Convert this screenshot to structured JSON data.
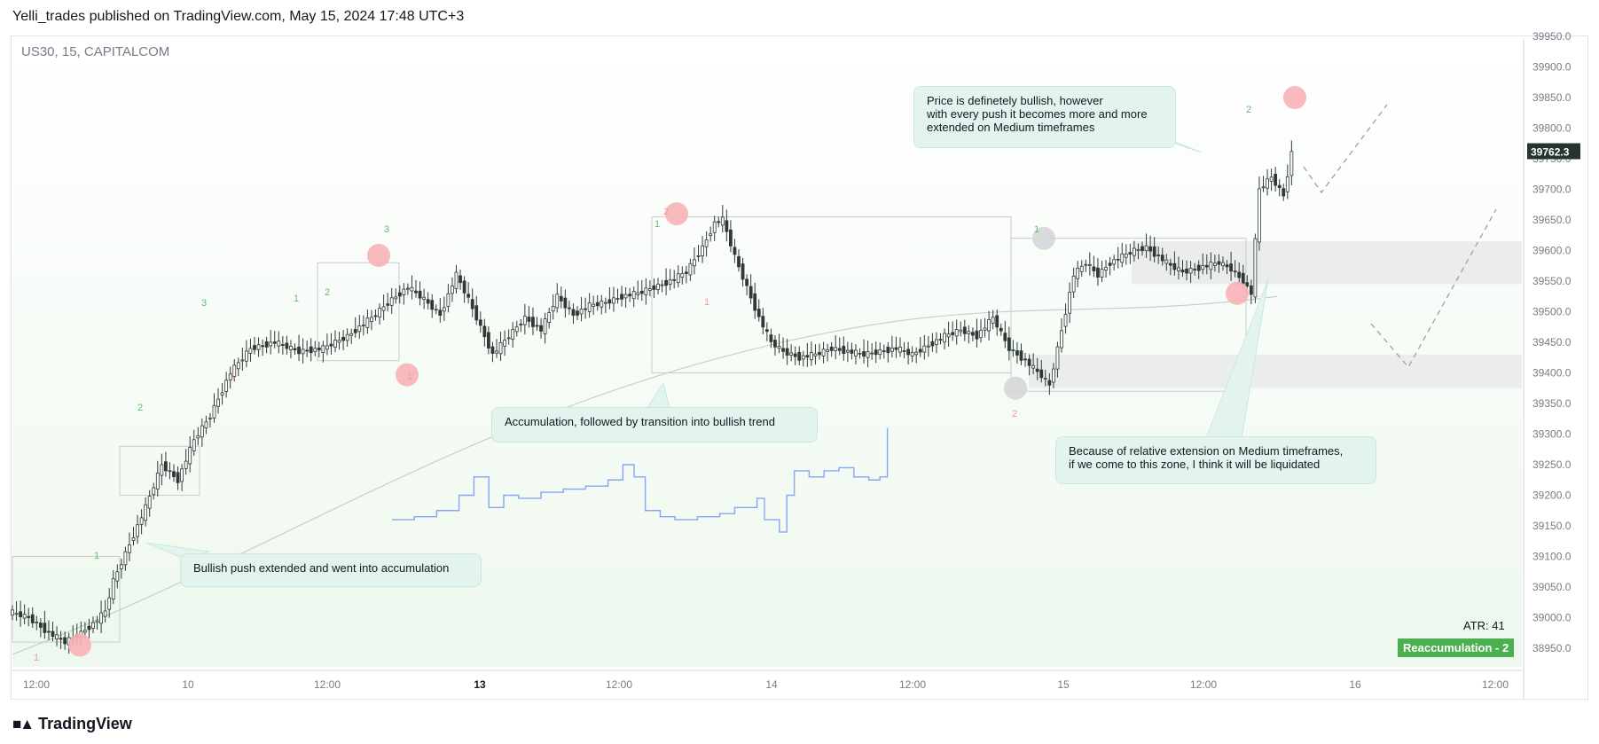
{
  "header": {
    "publisher_text": "Yelli_trades published on TradingView.com, May 15, 2024 17:48 UTC+3"
  },
  "symbol": {
    "label": "US30, 15, CAPITALCOM"
  },
  "footer": {
    "brand": "TradingView"
  },
  "indicators": {
    "atr_label": "ATR: 41",
    "regime_badge": "Reaccumulation - 2"
  },
  "notes": [
    {
      "text": "Bullish push extended and went into accumulation"
    },
    {
      "text": "Accumulation, followed by transition into bullish trend"
    },
    {
      "text": "Price is definetely bullish, however\nwith every push it becomes more and more\nextended on Medium timeframes"
    },
    {
      "text": "Because of relative extension on Medium timeframes,\nif we come to this zone, I think it will be liquidated"
    }
  ],
  "colors": {
    "candle_up": "#26a69a",
    "candle_body": "#2f3a36",
    "bg_gradient_bottom": "#eef8ee",
    "circle_red": "#f7b2b6",
    "circle_grey": "#d5d6d9",
    "zone_grey": "#e9e9eb",
    "blue_line": "#86a6f5",
    "ma_line": "#c8cfc9",
    "price_badge": "#26342d",
    "wave_green": "#66bb6a",
    "wave_red": "#ef9a9a"
  },
  "chart_data": {
    "type": "candlestick",
    "title": "US30, 15, CAPITALCOM",
    "x_tick_labels": [
      "12:00",
      "10",
      "12:00",
      "13",
      "12:00",
      "14",
      "12:00",
      "15",
      "12:00",
      "16",
      "12:00"
    ],
    "y_tick_labels": [
      "39950.0",
      "39900.0",
      "39850.0",
      "39800.0",
      "39750.0",
      "39700.0",
      "39650.0",
      "39600.0",
      "39550.0",
      "39500.0",
      "39450.0",
      "39400.0",
      "39350.0",
      "39300.0",
      "39250.0",
      "39200.0",
      "39150.0",
      "39100.0",
      "39050.0",
      "39000.0",
      "38950.0"
    ],
    "ylim": [
      38925,
      39960
    ],
    "last_price": "39762.3",
    "price_path": [
      [
        0,
        39010
      ],
      [
        5,
        39000
      ],
      [
        10,
        38975
      ],
      [
        14,
        38960
      ],
      [
        18,
        38975
      ],
      [
        21,
        38990
      ],
      [
        24,
        39010
      ],
      [
        26,
        39060
      ],
      [
        30,
        39120
      ],
      [
        34,
        39180
      ],
      [
        38,
        39250
      ],
      [
        42,
        39225
      ],
      [
        46,
        39290
      ],
      [
        50,
        39330
      ],
      [
        55,
        39400
      ],
      [
        60,
        39440
      ],
      [
        66,
        39450
      ],
      [
        72,
        39435
      ],
      [
        78,
        39440
      ],
      [
        84,
        39460
      ],
      [
        90,
        39490
      ],
      [
        95,
        39520
      ],
      [
        99,
        39540
      ],
      [
        103,
        39520
      ],
      [
        107,
        39495
      ],
      [
        111,
        39560
      ],
      [
        114,
        39520
      ],
      [
        117,
        39475
      ],
      [
        120,
        39430
      ],
      [
        124,
        39460
      ],
      [
        128,
        39490
      ],
      [
        132,
        39470
      ],
      [
        136,
        39525
      ],
      [
        140,
        39495
      ],
      [
        144,
        39510
      ],
      [
        148,
        39515
      ],
      [
        152,
        39525
      ],
      [
        156,
        39530
      ],
      [
        160,
        39540
      ],
      [
        164,
        39550
      ],
      [
        168,
        39565
      ],
      [
        172,
        39605
      ],
      [
        175,
        39645
      ],
      [
        177,
        39650
      ],
      [
        180,
        39590
      ],
      [
        183,
        39540
      ],
      [
        186,
        39490
      ],
      [
        189,
        39450
      ],
      [
        192,
        39435
      ],
      [
        196,
        39425
      ],
      [
        200,
        39430
      ],
      [
        204,
        39440
      ],
      [
        208,
        39435
      ],
      [
        212,
        39430
      ],
      [
        216,
        39435
      ],
      [
        220,
        39440
      ],
      [
        224,
        39430
      ],
      [
        228,
        39445
      ],
      [
        232,
        39460
      ],
      [
        236,
        39470
      ],
      [
        240,
        39460
      ],
      [
        244,
        39490
      ],
      [
        248,
        39440
      ],
      [
        252,
        39420
      ],
      [
        256,
        39395
      ],
      [
        258,
        39380
      ],
      [
        261,
        39470
      ],
      [
        264,
        39560
      ],
      [
        267,
        39580
      ],
      [
        270,
        39560
      ],
      [
        273,
        39580
      ],
      [
        276,
        39590
      ],
      [
        279,
        39600
      ],
      [
        282,
        39605
      ],
      [
        285,
        39590
      ],
      [
        288,
        39575
      ],
      [
        291,
        39565
      ],
      [
        294,
        39570
      ],
      [
        297,
        39575
      ],
      [
        300,
        39580
      ],
      [
        303,
        39570
      ],
      [
        306,
        39550
      ],
      [
        308,
        39530
      ],
      [
        310,
        39700
      ],
      [
        313,
        39720
      ],
      [
        316,
        39690
      ],
      [
        318,
        39760
      ]
    ],
    "blue_series_path": [
      [
        0,
        39160
      ],
      [
        6,
        39165
      ],
      [
        12,
        39175
      ],
      [
        18,
        39200
      ],
      [
        22,
        39230
      ],
      [
        26,
        39180
      ],
      [
        30,
        39200
      ],
      [
        34,
        39195
      ],
      [
        40,
        39205
      ],
      [
        46,
        39210
      ],
      [
        52,
        39215
      ],
      [
        58,
        39225
      ],
      [
        62,
        39250
      ],
      [
        65,
        39230
      ],
      [
        68,
        39175
      ],
      [
        72,
        39165
      ],
      [
        76,
        39160
      ],
      [
        82,
        39165
      ],
      [
        88,
        39170
      ],
      [
        92,
        39180
      ],
      [
        98,
        39195
      ],
      [
        100,
        39160
      ],
      [
        104,
        39140
      ],
      [
        106,
        39200
      ],
      [
        108,
        39240
      ],
      [
        112,
        39230
      ],
      [
        116,
        39240
      ],
      [
        120,
        39245
      ],
      [
        124,
        39230
      ],
      [
        128,
        39225
      ],
      [
        131,
        39230
      ],
      [
        133,
        39310
      ]
    ],
    "wave_counts": [
      {
        "label": "1",
        "color": "red"
      },
      {
        "label": "1",
        "color": "green"
      },
      {
        "label": "2",
        "color": "green"
      },
      {
        "label": "3",
        "color": "green"
      },
      {
        "label": "1",
        "color": "green"
      },
      {
        "label": "2",
        "color": "green"
      },
      {
        "label": "3",
        "color": "green"
      },
      {
        "label": "1",
        "color": "red"
      },
      {
        "label": "1",
        "color": "red"
      },
      {
        "label": "1",
        "color": "green"
      },
      {
        "label": "2",
        "color": "red"
      },
      {
        "label": "1",
        "color": "red"
      },
      {
        "label": "1",
        "color": "green"
      },
      {
        "label": "2",
        "color": "red"
      },
      {
        "label": "2",
        "color": "green"
      }
    ],
    "zones": [
      {
        "from": 39545,
        "to": 39615
      },
      {
        "from": 39375,
        "to": 39430
      }
    ],
    "projection_path": [
      [
        39760
      ],
      [
        39700
      ],
      [
        39845
      ]
    ],
    "projection_path_2": [
      [
        39480
      ],
      [
        39410
      ],
      [
        39670
      ]
    ]
  }
}
